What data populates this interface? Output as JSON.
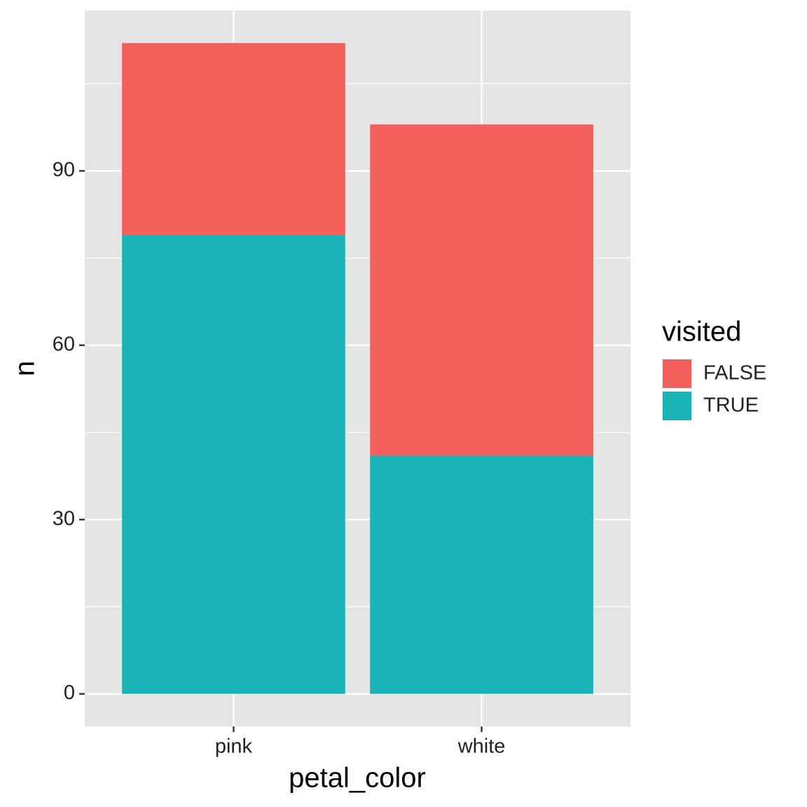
{
  "chart_data": {
    "type": "stacked_bar",
    "x_label": "petal_color",
    "y_label": "n",
    "categories": [
      "pink",
      "white"
    ],
    "series": [
      {
        "name": "FALSE",
        "color": "#f35f5b",
        "values": [
          33,
          57
        ]
      },
      {
        "name": "TRUE",
        "color": "#1ab3b7",
        "values": [
          79,
          41
        ]
      }
    ],
    "legend_title": "visited",
    "ylim": [
      -5.6,
      117.6
    ],
    "yticks": [
      0,
      30,
      60,
      90
    ],
    "minor_yticks": [
      15,
      45,
      75,
      105
    ],
    "grid": true
  }
}
